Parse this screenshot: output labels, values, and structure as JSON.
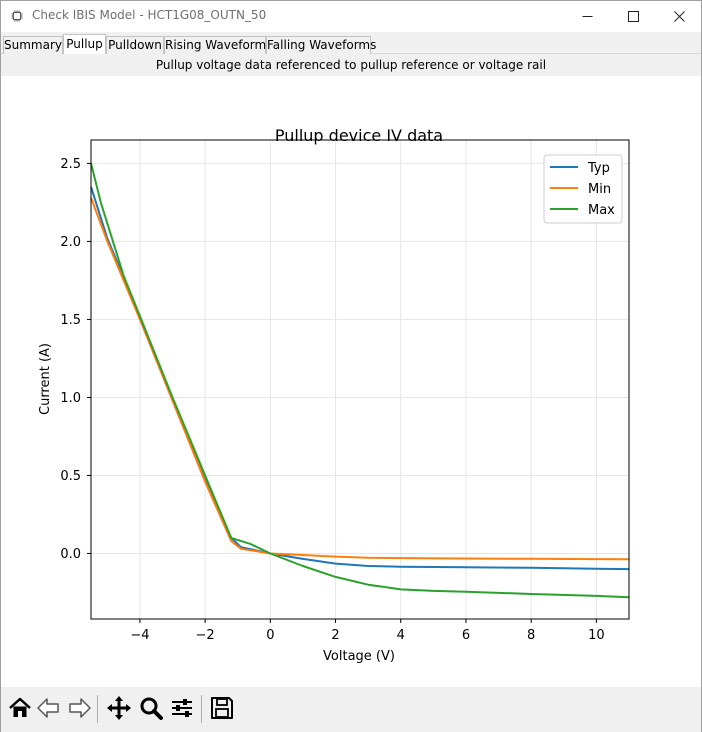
{
  "window": {
    "title": "Check IBIS Model - HCT1G08_OUTN_50",
    "app_icon": "chip-icon"
  },
  "tabs": [
    {
      "label": "Summary",
      "active": false
    },
    {
      "label": "Pullup",
      "active": true
    },
    {
      "label": "Pulldown",
      "active": false
    },
    {
      "label": "Rising Waveforms",
      "active": false
    },
    {
      "label": "Falling Waveforms",
      "active": false
    }
  ],
  "banner": {
    "text": "Pullup voltage data referenced to pullup reference or voltage rail"
  },
  "toolbar": {
    "buttons": [
      {
        "name": "home-icon"
      },
      {
        "name": "back-arrow-icon"
      },
      {
        "name": "forward-arrow-icon"
      },
      {
        "name": "pan-icon"
      },
      {
        "name": "zoom-icon"
      },
      {
        "name": "configure-subplots-icon"
      },
      {
        "name": "save-icon"
      }
    ]
  },
  "chart_data": {
    "type": "line",
    "title": "Pullup device IV data",
    "xlabel": "Voltage (V)",
    "ylabel": "Current (A)",
    "xlim": [
      -5.5,
      11
    ],
    "ylim": [
      -0.42,
      2.65
    ],
    "xticks": [
      -4,
      -2,
      0,
      2,
      4,
      6,
      8,
      10
    ],
    "xtick_labels": [
      "−4",
      "−2",
      "0",
      "2",
      "4",
      "6",
      "8",
      "10"
    ],
    "yticks": [
      0.0,
      0.5,
      1.0,
      1.5,
      2.0,
      2.5
    ],
    "ytick_labels": [
      "0.0",
      "0.5",
      "1.0",
      "1.5",
      "2.0",
      "2.5"
    ],
    "grid": true,
    "legend": "top-right",
    "series": [
      {
        "name": "Typ",
        "color": "#1f77b4",
        "x": [
          -5.5,
          -5.0,
          -4.0,
          -3.0,
          -2.0,
          -1.2,
          -0.9,
          0,
          1,
          2,
          3,
          4,
          6,
          8,
          10,
          11
        ],
        "y": [
          2.35,
          2.02,
          1.52,
          0.99,
          0.47,
          0.1,
          0.04,
          0.0,
          -0.035,
          -0.065,
          -0.08,
          -0.085,
          -0.088,
          -0.092,
          -0.098,
          -0.1
        ]
      },
      {
        "name": "Min",
        "color": "#ff7f0e",
        "x": [
          -5.5,
          -5.0,
          -4.0,
          -3.0,
          -2.0,
          -1.2,
          -0.9,
          0,
          1,
          2,
          3,
          4,
          6,
          8,
          10,
          11
        ],
        "y": [
          2.28,
          2.0,
          1.5,
          0.98,
          0.46,
          0.08,
          0.03,
          0.0,
          -0.01,
          -0.02,
          -0.028,
          -0.03,
          -0.032,
          -0.034,
          -0.036,
          -0.037
        ]
      },
      {
        "name": "Max",
        "color": "#2ca02c",
        "x": [
          -5.5,
          -5.2,
          -4.5,
          -4.0,
          -3.0,
          -2.0,
          -1.2,
          -0.6,
          0,
          1,
          2,
          3,
          4,
          5,
          6,
          8,
          10,
          11
        ],
        "y": [
          2.5,
          2.25,
          1.78,
          1.52,
          1.0,
          0.5,
          0.1,
          0.06,
          0.0,
          -0.08,
          -0.15,
          -0.2,
          -0.23,
          -0.24,
          -0.245,
          -0.26,
          -0.272,
          -0.28
        ]
      }
    ]
  }
}
